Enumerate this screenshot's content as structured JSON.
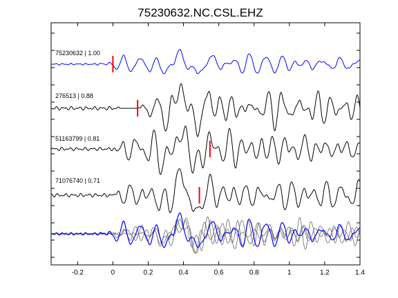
{
  "chart_data": {
    "type": "line",
    "title": "75230632.NC.CSL.EHZ",
    "xlabel": "",
    "ylabel": "",
    "xlim": [
      -0.35,
      1.4
    ],
    "x_ticks": [
      -0.2,
      0,
      0.2,
      0.4,
      0.6,
      0.8,
      1,
      1.2,
      1.4
    ],
    "x_tick_labels": [
      "-0.2",
      "0",
      "0.2",
      "0.4",
      "0.6",
      "0.8",
      "1",
      "1.2",
      "1.4"
    ],
    "grid": false,
    "series": [
      {
        "id": "trace-1",
        "label": "75230632 | 1.00",
        "color": "#0000ff",
        "pick_time": 0.0,
        "onset_time": -0.08,
        "amplitude": 14,
        "seed": 11,
        "main": [
          {
            "t": 0.29,
            "a": -0.55
          },
          {
            "t": 0.385,
            "a": 1.0
          },
          {
            "t": 0.47,
            "a": -1.1
          },
          {
            "t": 0.55,
            "a": 0.45
          }
        ]
      },
      {
        "id": "trace-2",
        "label": "276513 | 0.88",
        "color": "#000000",
        "pick_time": 0.14,
        "onset_time": 0.15,
        "amplitude": 30,
        "seed": 23,
        "main": [
          {
            "t": 0.3,
            "a": -0.35
          },
          {
            "t": 0.39,
            "a": 1.0
          },
          {
            "t": 0.47,
            "a": -0.9
          },
          {
            "t": 0.54,
            "a": 0.4
          }
        ]
      },
      {
        "id": "trace-3",
        "label": "51163799 | 0.81",
        "color": "#000000",
        "pick_time": 0.55,
        "onset_time": 0.0,
        "amplitude": 28,
        "seed": 37,
        "main": [
          {
            "t": 0.29,
            "a": -0.55
          },
          {
            "t": 0.395,
            "a": 0.9
          },
          {
            "t": 0.47,
            "a": -1.0
          },
          {
            "t": 0.53,
            "a": 0.3
          }
        ]
      },
      {
        "id": "trace-4",
        "label": "71076740 | 0.71",
        "color": "#000000",
        "pick_time": 0.49,
        "onset_time": -0.02,
        "amplitude": 30,
        "seed": 53,
        "main": [
          {
            "t": 0.29,
            "a": -0.45
          },
          {
            "t": 0.39,
            "a": 0.95
          },
          {
            "t": 0.47,
            "a": -1.0
          },
          {
            "t": 0.54,
            "a": 0.35
          }
        ]
      }
    ],
    "stack": {
      "id": "stack",
      "description_color_main": "#0000ff",
      "color_others": "#666666",
      "amplitude": 18
    }
  },
  "colors": {
    "pick_marker": "#ff0000",
    "axes": "#000000"
  }
}
